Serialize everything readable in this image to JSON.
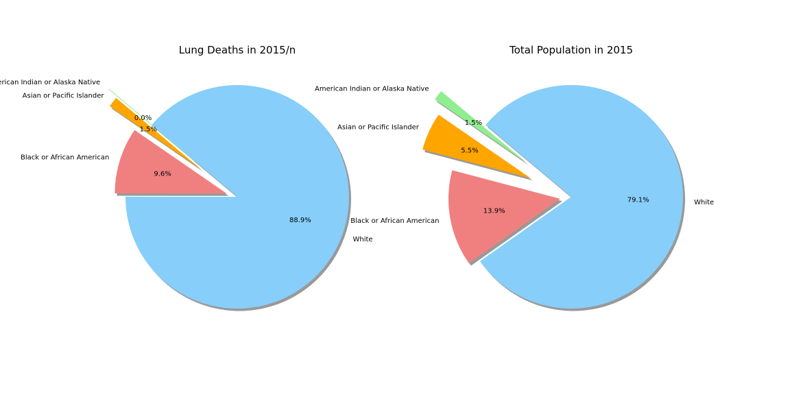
{
  "chart_data": [
    {
      "type": "pie",
      "title": "Lung Deaths in 2015/n",
      "start_angle_deg": 140,
      "shadow": true,
      "slices": [
        {
          "label": "American Indian or Alaska Native",
          "value": 0.0,
          "pct_label": "0.0%",
          "color": "#90ee90",
          "explode": 0.5
        },
        {
          "label": "Asian or Pacific Islander",
          "value": 1.5,
          "pct_label": "1.5%",
          "color": "#ffa500",
          "explode": 0.4
        },
        {
          "label": "Black or African American",
          "value": 9.6,
          "pct_label": "9.6%",
          "color": "#f08080",
          "explode": 0.1
        },
        {
          "label": "White",
          "value": 88.9,
          "pct_label": "88.9%",
          "color": "#87cefa",
          "explode": 0.0
        }
      ]
    },
    {
      "type": "pie",
      "title": "Total Population in 2015",
      "start_angle_deg": 140,
      "shadow": true,
      "slices": [
        {
          "label": "American Indian or Alaska Native",
          "value": 1.5,
          "pct_label": "1.5%",
          "color": "#90ee90",
          "explode": 0.5
        },
        {
          "label": "Asian or Pacific Islander",
          "value": 5.5,
          "pct_label": "5.5%",
          "color": "#ffa500",
          "explode": 0.4
        },
        {
          "label": "Black or African American",
          "value": 13.9,
          "pct_label": "13.9%",
          "color": "#f08080",
          "explode": 0.1
        },
        {
          "label": "White",
          "value": 79.1,
          "pct_label": "79.1%",
          "color": "#87cefa",
          "explode": 0.0
        }
      ]
    }
  ]
}
